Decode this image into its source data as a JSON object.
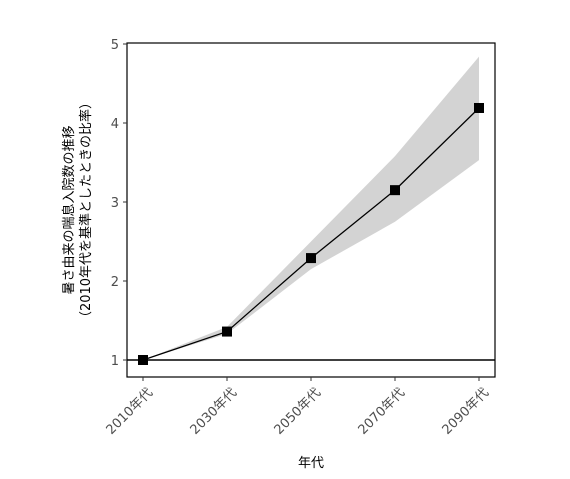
{
  "chart_data": {
    "type": "line",
    "categories": [
      "2010年代",
      "2030年代",
      "2050年代",
      "2070年代",
      "2090年代"
    ],
    "series": [
      {
        "values": [
          1.0,
          1.36,
          2.29,
          3.15,
          4.19
        ]
      }
    ],
    "band": {
      "lower": [
        1.0,
        1.33,
        2.15,
        2.75,
        3.53
      ],
      "upper": [
        1.0,
        1.42,
        2.5,
        3.58,
        4.84
      ]
    },
    "reference_line": 1,
    "xlabel": "年代",
    "ylabel_lines": [
      "暑さ由来の喘息入院数の推移",
      "（2010年代を基準としたときの比率）"
    ],
    "yticks": [
      1,
      2,
      3,
      4,
      5
    ],
    "ylim": [
      0.8,
      5.05
    ],
    "grid": false,
    "marker": "square",
    "colors": {
      "line": "#000000",
      "band": "#d3d3d3",
      "axis": "#000000"
    }
  }
}
